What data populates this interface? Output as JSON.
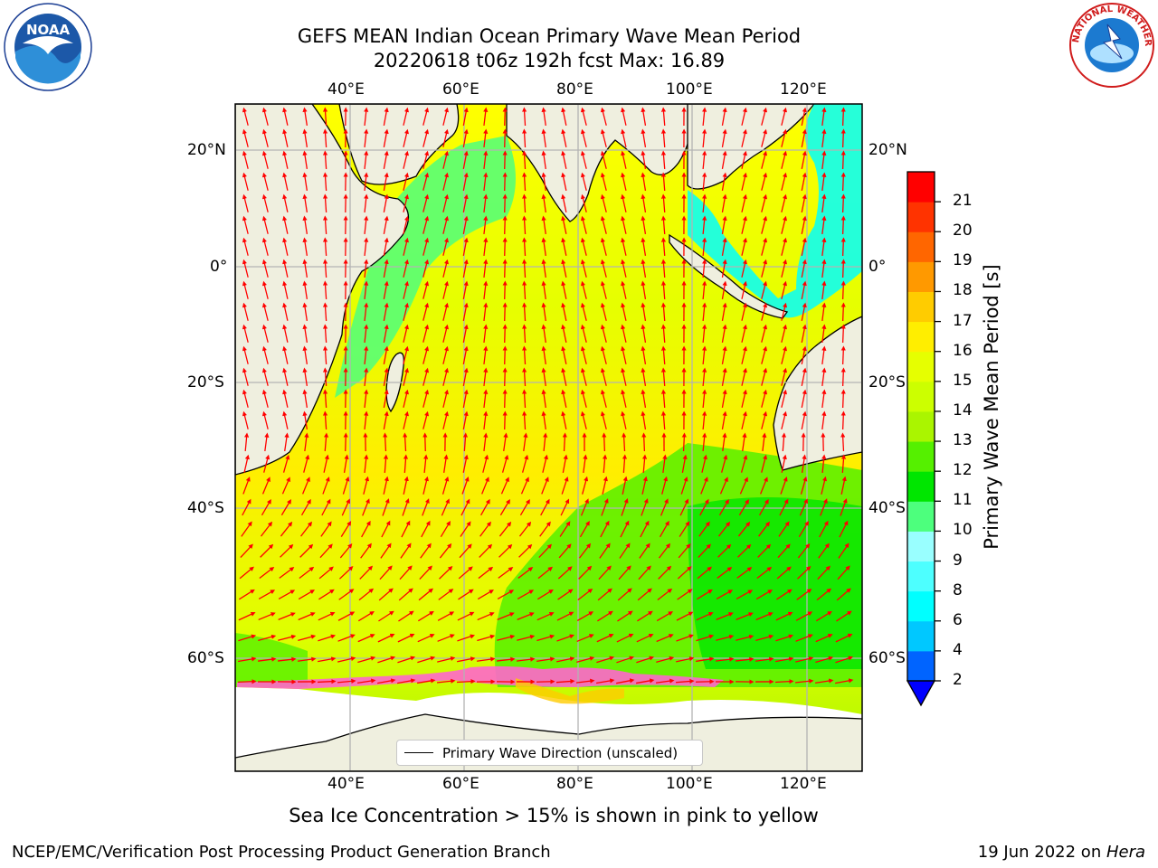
{
  "header": {
    "title_line1": "GEFS MEAN Indian Ocean Primary Wave Mean Period",
    "title_line2": "20220618 t06z 192h fcst   Max: 16.89"
  },
  "logos": {
    "left": {
      "name": "noaa-logo",
      "text": "NOAA",
      "ring_text": "NATIONAL OCEANIC AND ATMOSPHERIC ADMINISTRATION · U.S. DEPARTMENT OF COMMERCE"
    },
    "right": {
      "name": "nws-logo",
      "ring_text": "NATIONAL WEATHER SERVICE"
    }
  },
  "map": {
    "lon_ticks": [
      "40°E",
      "60°E",
      "80°E",
      "100°E",
      "120°E"
    ],
    "lat_ticks": [
      "20°N",
      "0°",
      "20°S",
      "40°S",
      "60°S"
    ],
    "extent": {
      "lon_range": [
        20,
        130
      ],
      "lat_range": [
        -75,
        27
      ]
    },
    "legend_label": "Primary Wave Direction (unscaled)",
    "arrow_color": "#ff0000",
    "land_color": "#efefdf",
    "ice_color": "#ffffff"
  },
  "colorbar": {
    "label": "Primary Wave Mean Period [s]",
    "ticks": [
      "2",
      "4",
      "6",
      "8",
      "9",
      "10",
      "11",
      "12",
      "13",
      "14",
      "15",
      "16",
      "17",
      "18",
      "19",
      "20",
      "21"
    ],
    "colors": [
      "#0064ff",
      "#00c8ff",
      "#00ffff",
      "#4dffff",
      "#99ffff",
      "#4dff7d",
      "#00e600",
      "#55f000",
      "#aaf500",
      "#ccff00",
      "#e6ff00",
      "#ffee00",
      "#ffcc00",
      "#ff9900",
      "#ff6600",
      "#ff3300",
      "#ff0000"
    ],
    "extend_color": "#0000ff"
  },
  "footer": {
    "subtitle": "Sea Ice Concentration > 15% is shown in pink to yellow",
    "left": "NCEP/EMC/Verification Post Processing Product Generation Branch",
    "right_prefix": "19 Jun 2022 on ",
    "right_host": "Hera"
  }
}
